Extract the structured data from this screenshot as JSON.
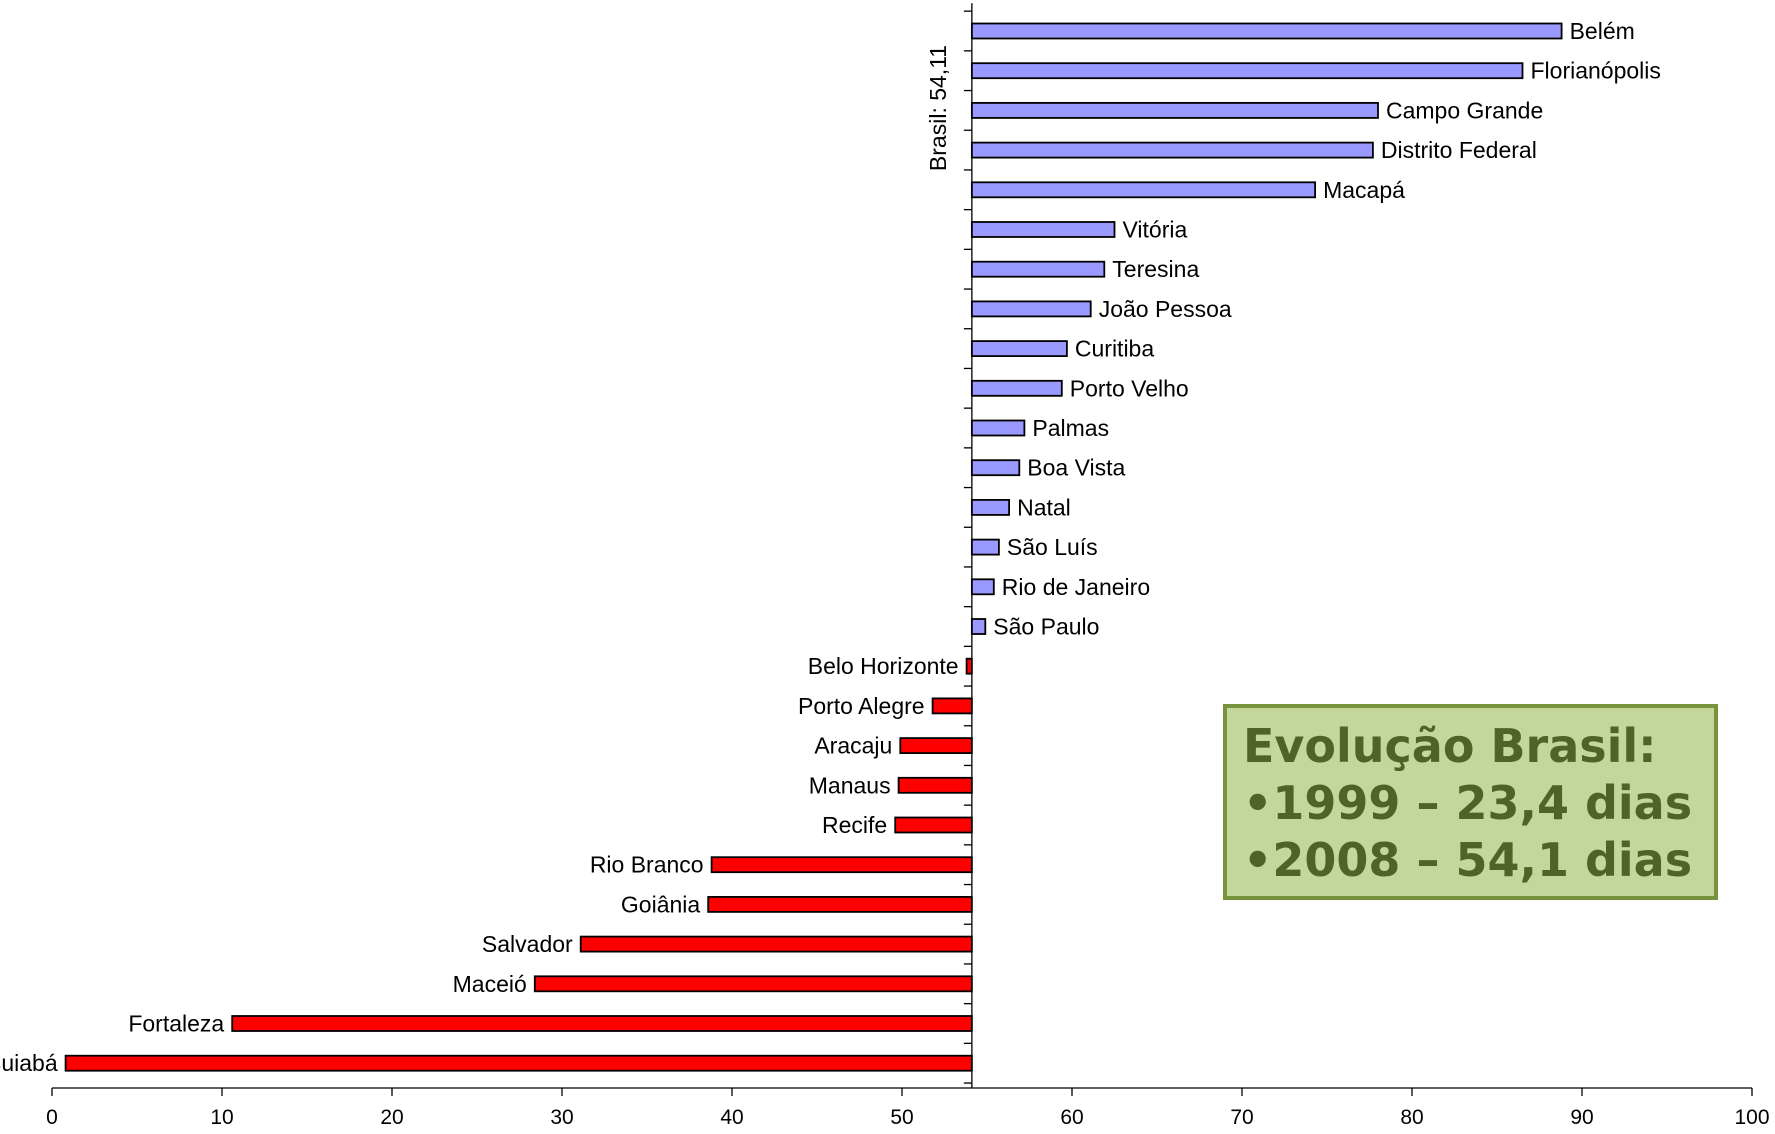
{
  "chart_data": {
    "type": "bar",
    "orientation": "horizontal",
    "reference": {
      "value": 54.11,
      "label": "Brasil: 54,11"
    },
    "xlim": [
      0,
      100
    ],
    "x_ticks": [
      0,
      10,
      20,
      30,
      40,
      50,
      60,
      70,
      80,
      90,
      100
    ],
    "colors": {
      "above": "#9999ff",
      "below": "#ff0000"
    },
    "bars": [
      {
        "label": "Belém",
        "value": 88.8
      },
      {
        "label": "Florianópolis",
        "value": 86.5
      },
      {
        "label": "Campo Grande",
        "value": 78.0
      },
      {
        "label": "Distrito Federal",
        "value": 77.7
      },
      {
        "label": "Macapá",
        "value": 74.3
      },
      {
        "label": "Vitória",
        "value": 62.5
      },
      {
        "label": "Teresina",
        "value": 61.9
      },
      {
        "label": "João Pessoa",
        "value": 61.1
      },
      {
        "label": "Curitiba",
        "value": 59.7
      },
      {
        "label": "Porto Velho",
        "value": 59.4
      },
      {
        "label": "Palmas",
        "value": 57.2
      },
      {
        "label": "Boa Vista",
        "value": 56.9
      },
      {
        "label": "Natal",
        "value": 56.3
      },
      {
        "label": "São Luís",
        "value": 55.7
      },
      {
        "label": "Rio de Janeiro",
        "value": 55.4
      },
      {
        "label": "São Paulo",
        "value": 54.9
      },
      {
        "label": "Belo Horizonte",
        "value": 53.8
      },
      {
        "label": "Porto Alegre",
        "value": 51.8
      },
      {
        "label": "Aracaju",
        "value": 49.9
      },
      {
        "label": "Manaus",
        "value": 49.8
      },
      {
        "label": "Recife",
        "value": 49.6
      },
      {
        "label": "Rio Branco",
        "value": 38.8
      },
      {
        "label": "Goiânia",
        "value": 38.6
      },
      {
        "label": "Salvador",
        "value": 31.1
      },
      {
        "label": "Maceió",
        "value": 28.4
      },
      {
        "label": "Fortaleza",
        "value": 10.6
      },
      {
        "label": "Cuiabá",
        "value": 0.8
      }
    ]
  },
  "info_box": {
    "title": "Evolução Brasil:",
    "line1": "•1999 – 23,4 dias",
    "line2": "•2008 – 54,1 dias"
  }
}
